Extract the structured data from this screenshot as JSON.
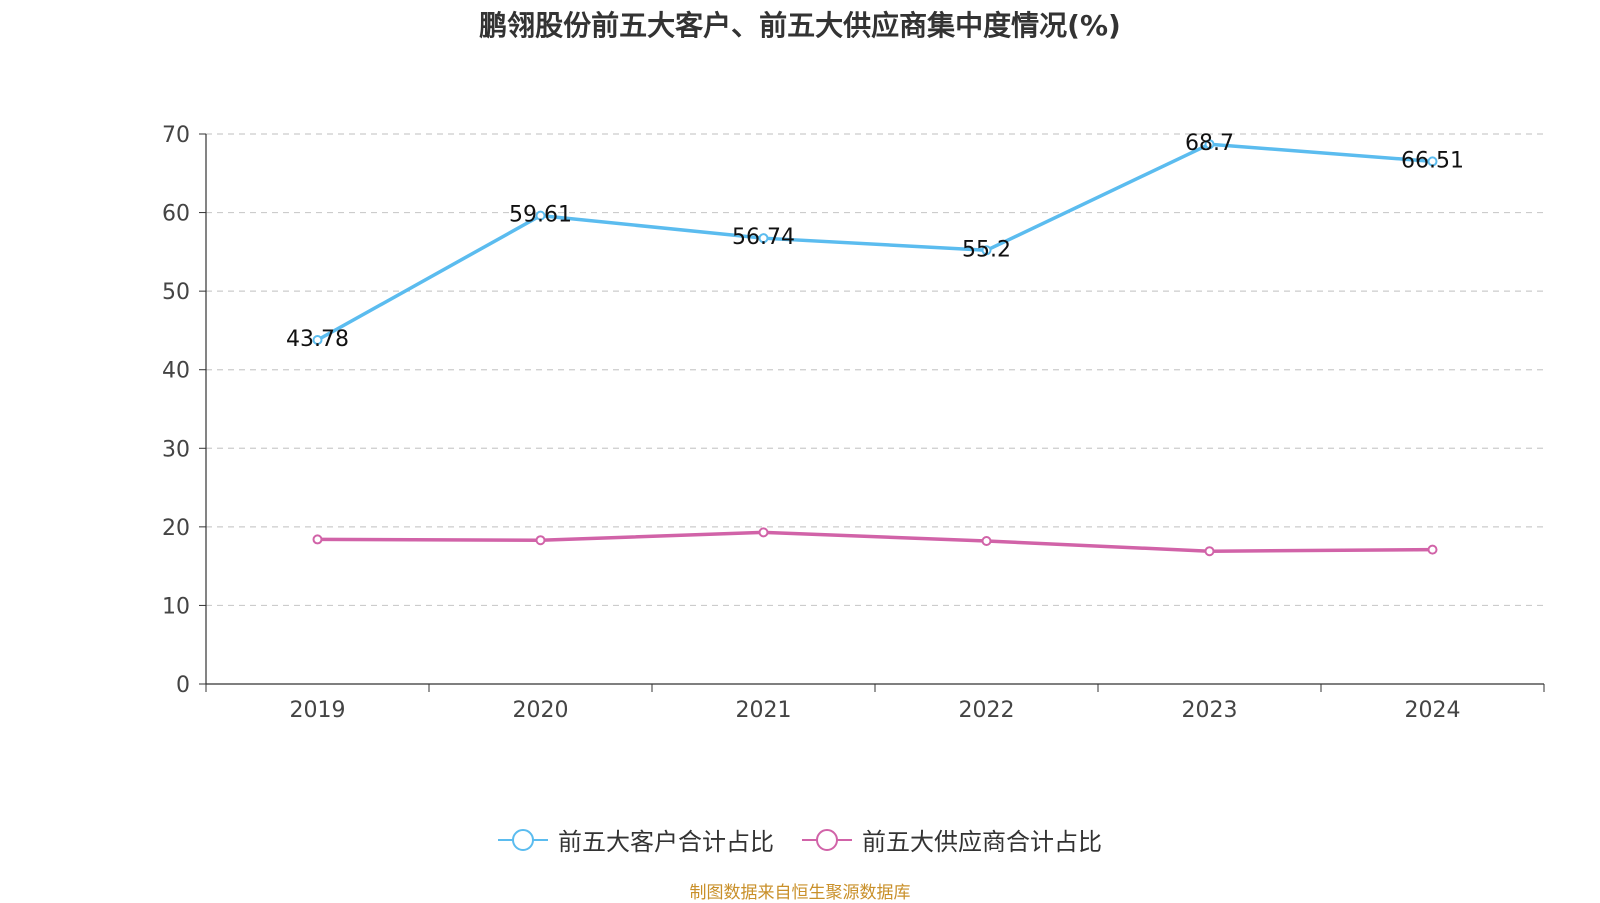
{
  "chart_data": {
    "type": "line",
    "title": "鹏翎股份前五大客户、前五大供应商集中度情况(%)",
    "categories": [
      "2019",
      "2020",
      "2021",
      "2022",
      "2023",
      "2024"
    ],
    "ylim": [
      0,
      70
    ],
    "yticks": [
      "0",
      "10",
      "20",
      "30",
      "40",
      "50",
      "60",
      "70"
    ],
    "grid": true,
    "legend_position": "bottom",
    "series": [
      {
        "name": "前五大客户合计占比",
        "color": "#5bbcef",
        "values": [
          43.78,
          59.61,
          56.74,
          55.2,
          68.7,
          66.51
        ],
        "labels": [
          "43.78",
          "59.61",
          "56.74",
          "55.2",
          "68.7",
          "66.51"
        ]
      },
      {
        "name": "前五大供应商合计占比",
        "color": "#d163a8",
        "values": [
          18.4,
          18.3,
          19.3,
          18.2,
          16.9,
          17.1
        ],
        "labels": [
          "",
          "",
          "",
          "",
          "",
          ""
        ]
      }
    ]
  },
  "source": "制图数据来自恒生聚源数据库"
}
